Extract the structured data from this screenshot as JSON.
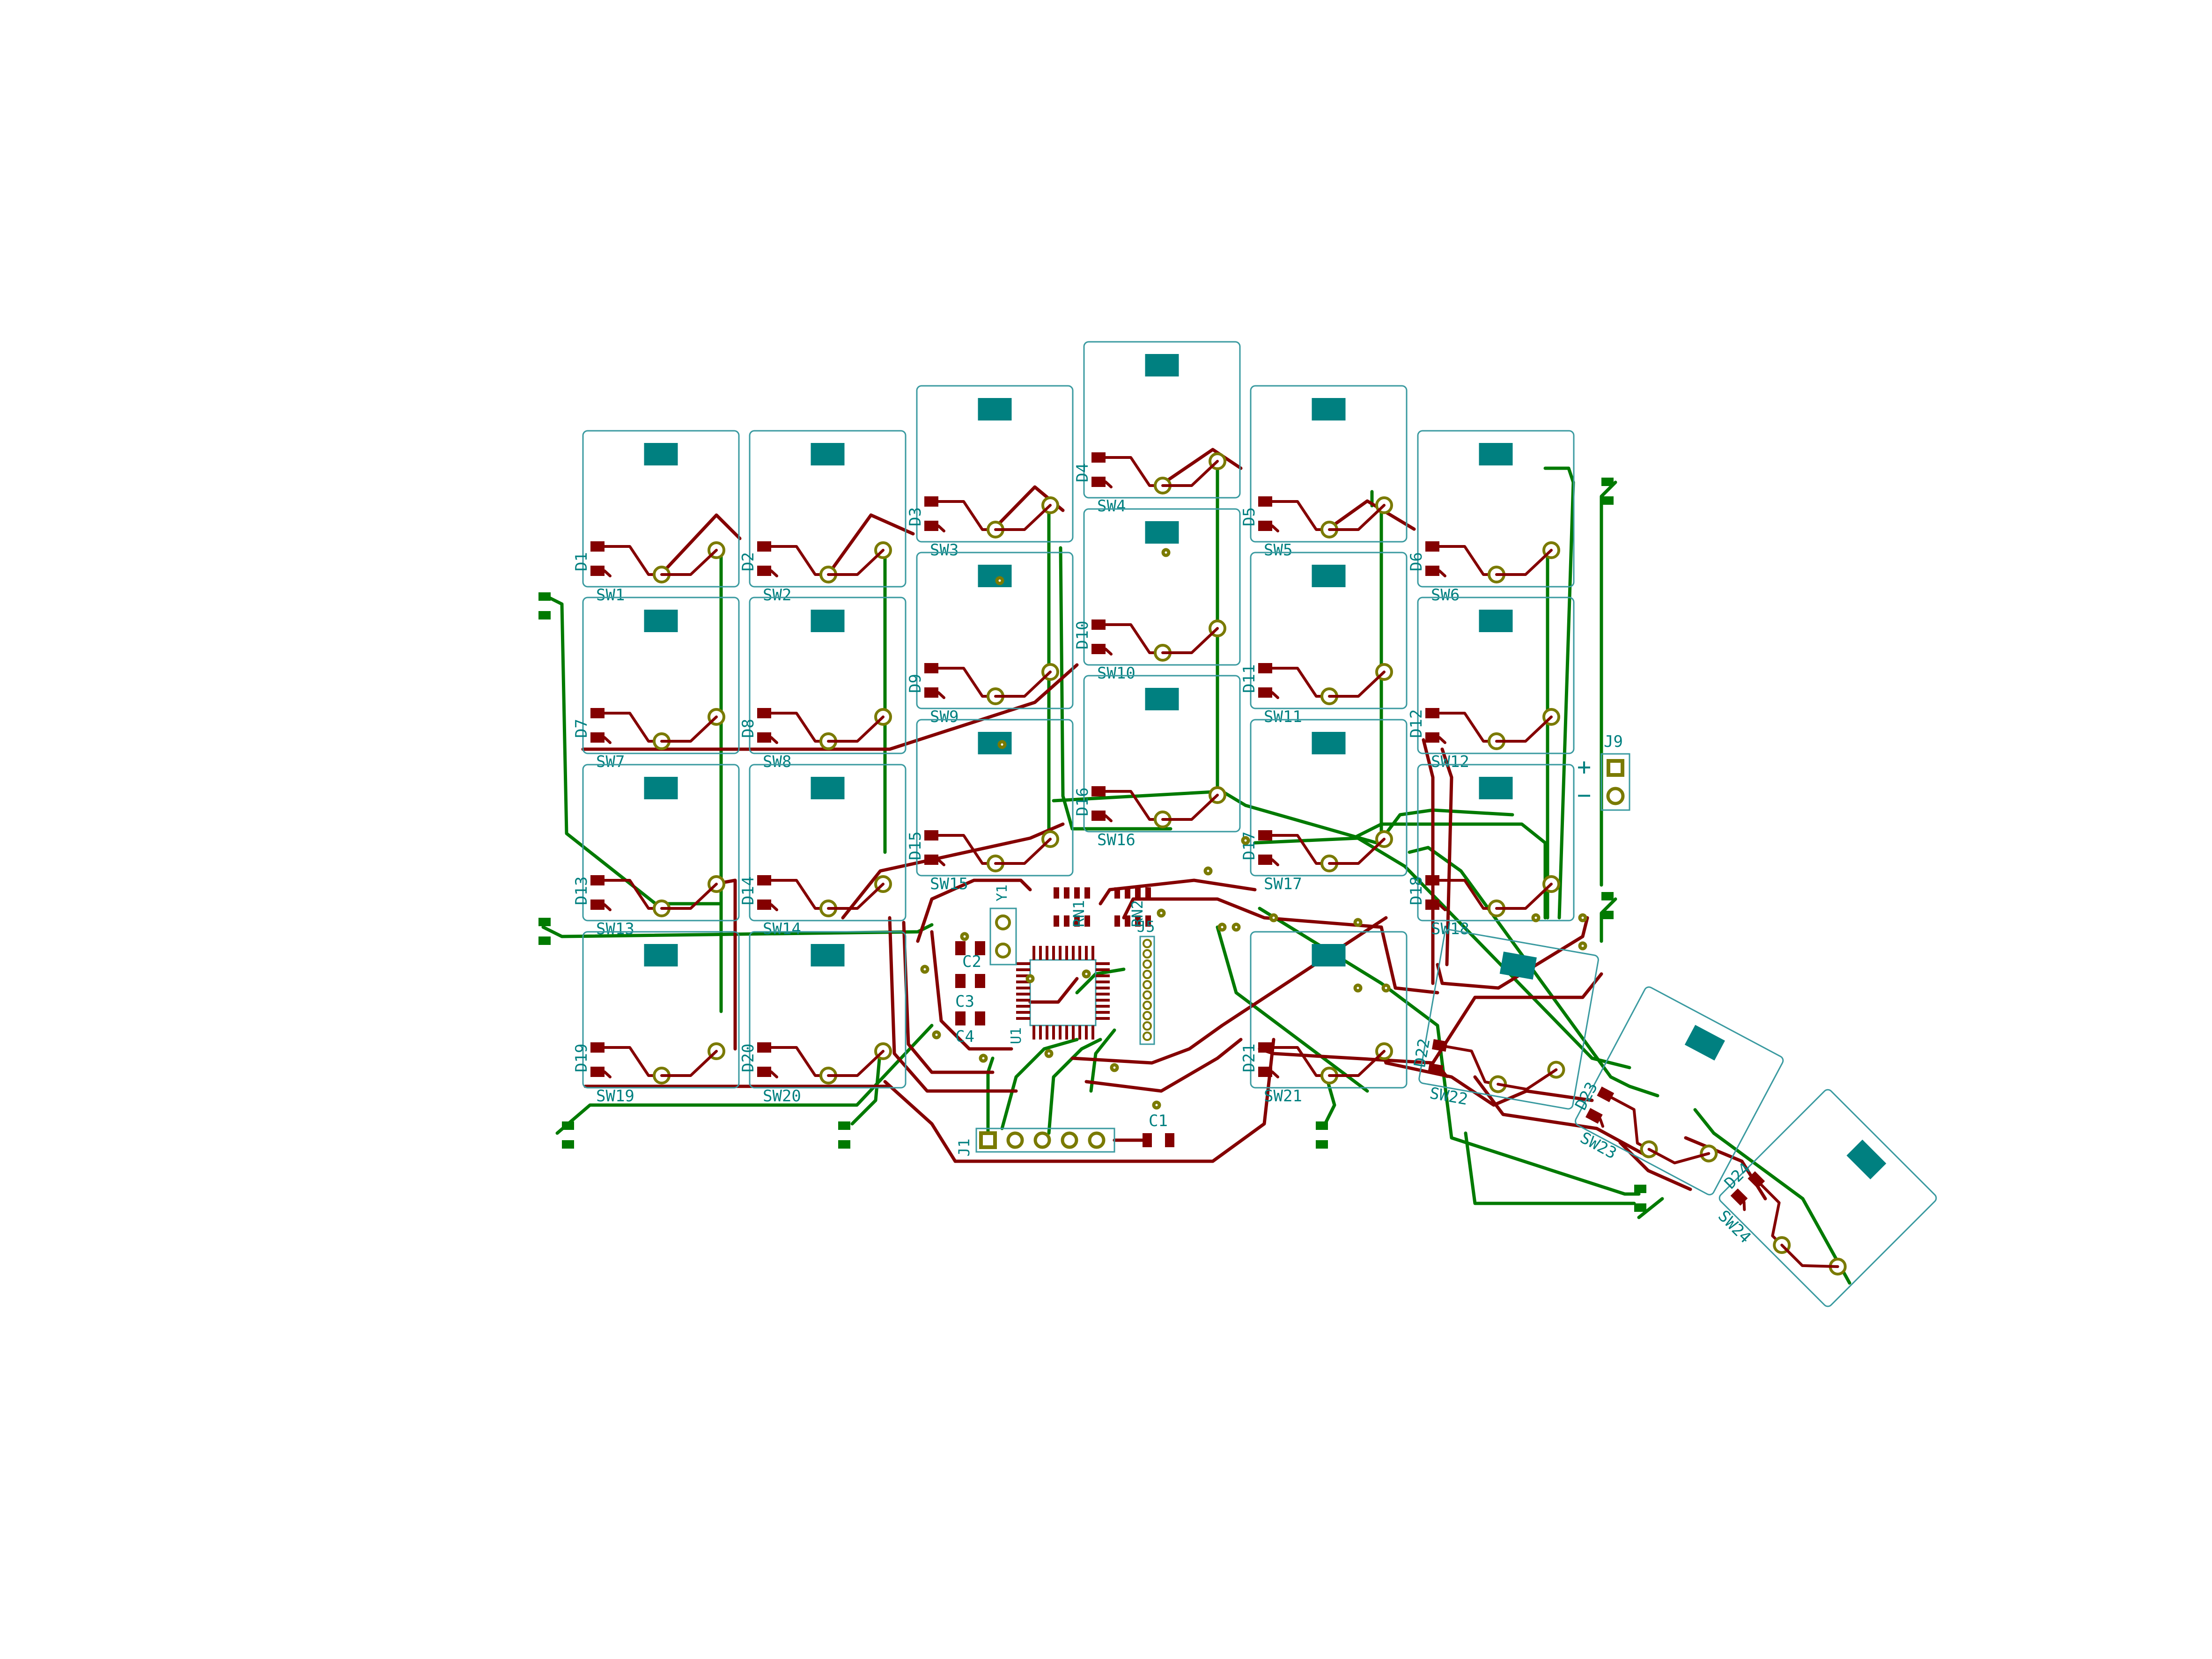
{
  "colors": {
    "background": "#ffffff",
    "outline": "#3a9aa0",
    "pad": "#008080",
    "copper_front": "#840000",
    "copper_back": "#007a00",
    "via_ring": "#7a7a00",
    "via_fill": "#ffffff",
    "label": "#008080"
  },
  "switches": [
    {
      "label": "SW1"
    },
    {
      "label": "SW2"
    },
    {
      "label": "SW3"
    },
    {
      "label": "SW4"
    },
    {
      "label": "SW5"
    },
    {
      "label": "SW6"
    },
    {
      "label": "SW7"
    },
    {
      "label": "SW8"
    },
    {
      "label": "SW9"
    },
    {
      "label": "SW10"
    },
    {
      "label": "SW11"
    },
    {
      "label": "SW12"
    },
    {
      "label": "SW13"
    },
    {
      "label": "SW14"
    },
    {
      "label": "SW15"
    },
    {
      "label": "SW16"
    },
    {
      "label": "SW17"
    },
    {
      "label": "SW18"
    },
    {
      "label": "SW19"
    },
    {
      "label": "SW20"
    },
    {
      "label": "SW21"
    },
    {
      "label": "SW22"
    },
    {
      "label": "SW23"
    },
    {
      "label": "SW24"
    }
  ],
  "diodes": [
    {
      "label": "D1"
    },
    {
      "label": "D2"
    },
    {
      "label": "D3"
    },
    {
      "label": "D4"
    },
    {
      "label": "D5"
    },
    {
      "label": "D6"
    },
    {
      "label": "D7"
    },
    {
      "label": "D8"
    },
    {
      "label": "D9"
    },
    {
      "label": "D10"
    },
    {
      "label": "D11"
    },
    {
      "label": "D12"
    },
    {
      "label": "D13"
    },
    {
      "label": "D14"
    },
    {
      "label": "D15"
    },
    {
      "label": "D16"
    },
    {
      "label": "D17"
    },
    {
      "label": "D18"
    },
    {
      "label": "D19"
    },
    {
      "label": "D20"
    },
    {
      "label": "D21"
    },
    {
      "label": "D22"
    },
    {
      "label": "D23"
    },
    {
      "label": "D24"
    }
  ],
  "components": {
    "j1": "J1",
    "j5": "J5",
    "j9": "J9",
    "j9_plus": "+",
    "j9_minus": "−",
    "c1": "C1",
    "c2": "C2",
    "c3": "C3",
    "c4": "C4",
    "rn1": "RN1",
    "rn2": "RN2",
    "u1": "U1",
    "y1": "Y1"
  }
}
